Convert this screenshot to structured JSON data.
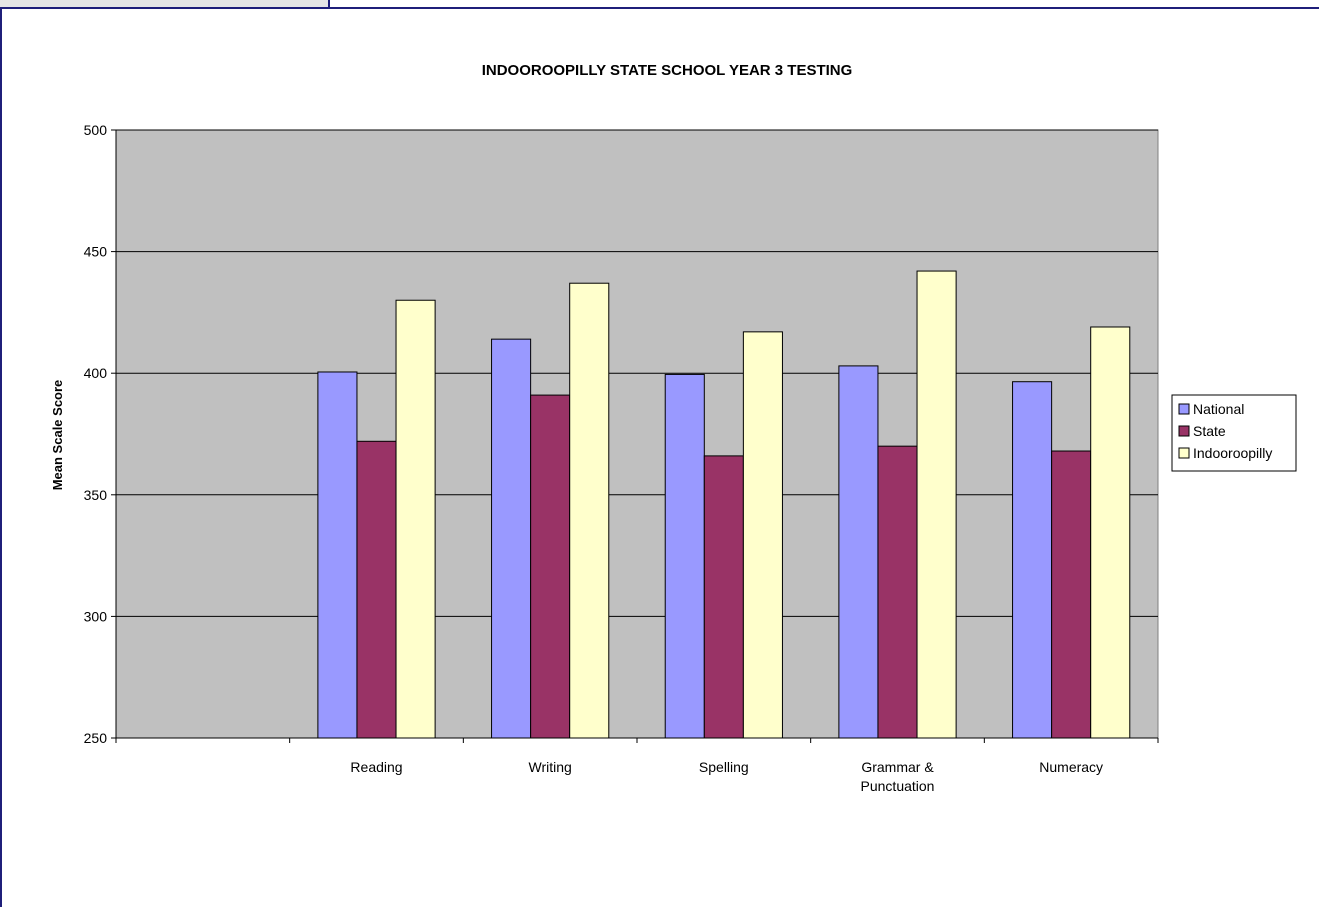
{
  "chart_data": {
    "type": "bar",
    "title": "INDOOROOPILLY STATE SCHOOL YEAR 3 TESTING",
    "xlabel": "",
    "ylabel": "Mean Scale Score",
    "ylim": [
      250,
      500
    ],
    "yticks": [
      250,
      300,
      350,
      400,
      450,
      500
    ],
    "grid": true,
    "legend_position": "right",
    "categories": [
      [
        "",
        ""
      ],
      [
        "Reading",
        ""
      ],
      [
        "Writing",
        ""
      ],
      [
        "Spelling",
        ""
      ],
      [
        "Grammar &",
        "Punctuation"
      ],
      [
        "Numeracy",
        ""
      ]
    ],
    "series": [
      {
        "name": "National",
        "color": "#9999ff",
        "values": [
          null,
          400.5,
          414,
          399.5,
          403,
          396.5
        ]
      },
      {
        "name": "State",
        "color": "#993366",
        "values": [
          null,
          372,
          391,
          366,
          370,
          368
        ]
      },
      {
        "name": "Indooroopilly",
        "color": "#ffffcc",
        "values": [
          null,
          430,
          437,
          417,
          442,
          419
        ]
      }
    ],
    "plot_background": "#c0c0c0"
  }
}
